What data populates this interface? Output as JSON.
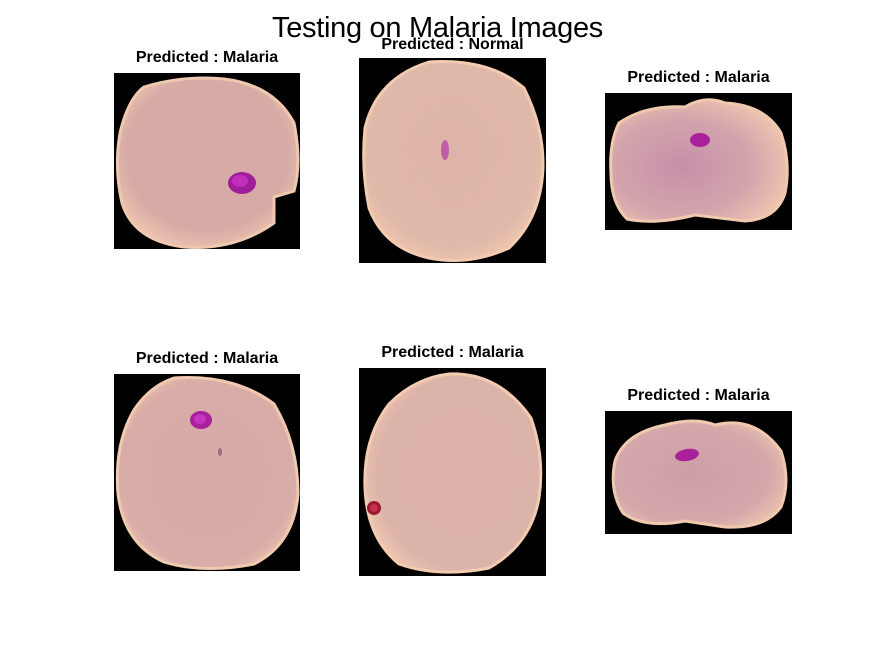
{
  "figure": {
    "title": "Testing on Malaria Images"
  },
  "panels": [
    {
      "label": "Predicted : Malaria",
      "prediction": "Malaria"
    },
    {
      "label": "Predicted : Normal",
      "prediction": "Normal"
    },
    {
      "label": "Predicted : Malaria",
      "prediction": "Malaria"
    },
    {
      "label": "Predicted : Malaria",
      "prediction": "Malaria"
    },
    {
      "label": "Predicted : Malaria",
      "prediction": "Malaria"
    },
    {
      "label": "Predicted : Malaria",
      "prediction": "Malaria"
    }
  ],
  "colors": {
    "background": "#000000",
    "cell": "#d8aea8",
    "cell_edge": "#efc9b2",
    "parasite": "#a8209a"
  }
}
